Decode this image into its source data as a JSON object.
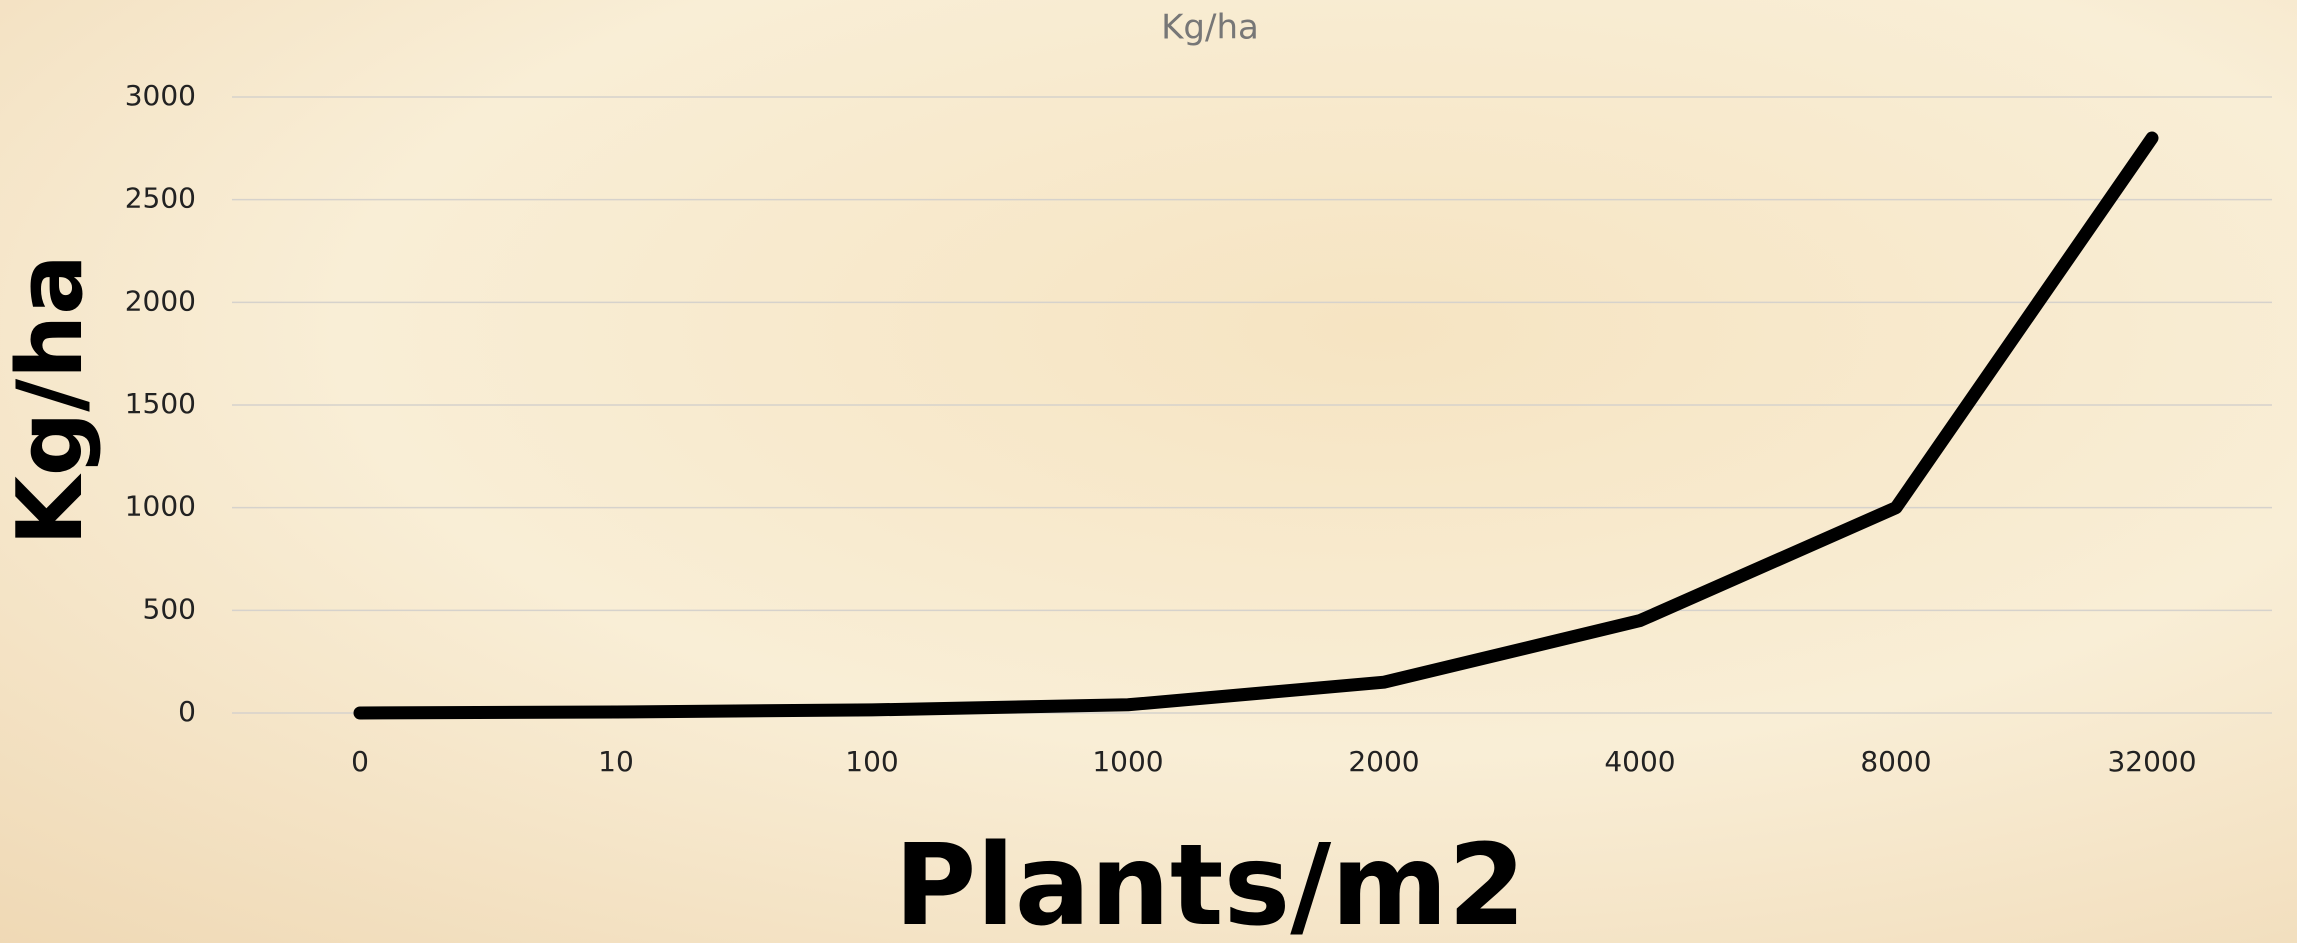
{
  "chart_data": {
    "type": "line",
    "title": "Kg/ha",
    "y_label": "Kg/ha",
    "x_label": "Plants/m2",
    "categories": [
      "0",
      "10",
      "100",
      "1000",
      "2000",
      "4000",
      "8000",
      "32000"
    ],
    "series": [
      {
        "name": "Kg/ha",
        "color": "#000000",
        "values": [
          0,
          5,
          15,
          40,
          150,
          450,
          1000,
          2800
        ]
      }
    ],
    "ylim": [
      0,
      3000
    ],
    "yticks": [
      0,
      500,
      1000,
      1500,
      2000,
      2500,
      3000
    ],
    "grid": true
  }
}
